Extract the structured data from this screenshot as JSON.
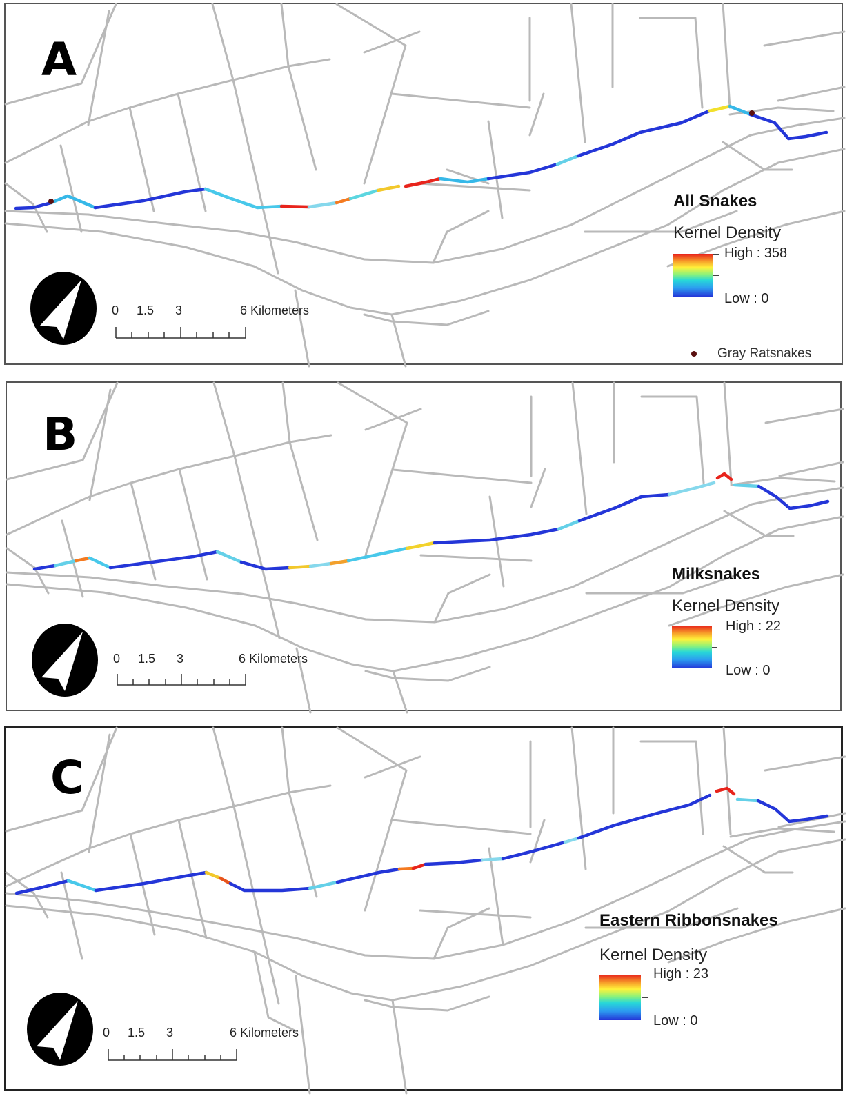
{
  "panels": [
    {
      "label": "A",
      "legend_title": "All Snakes",
      "legend_subtitle": "Kernel Density",
      "high": "High : 358",
      "low": "Low : 0",
      "points_label": "Gray Ratsnakes",
      "scale": [
        "0",
        "1.5",
        "3",
        "6 Kilometers"
      ]
    },
    {
      "label": "B",
      "legend_title": "Milksnakes",
      "legend_subtitle": "Kernel Density",
      "high": "High : 22",
      "low": "Low : 0",
      "scale": [
        "0",
        "1.5",
        "3",
        "6 Kilometers"
      ]
    },
    {
      "label": "C",
      "legend_title": "Eastern Ribbonsnakes",
      "legend_subtitle": "Kernel Density",
      "high": "High : 23",
      "low": "Low : 0",
      "scale": [
        "0",
        "1.5",
        "3",
        "6 Kilometers"
      ]
    }
  ],
  "colors": {
    "roads": "#b9b9b9",
    "high": "#e8241c",
    "low": "#2436d8",
    "points": "#5a1010"
  },
  "icons": [
    "north-arrow-icon",
    "scale-bar",
    "color-ramp"
  ]
}
